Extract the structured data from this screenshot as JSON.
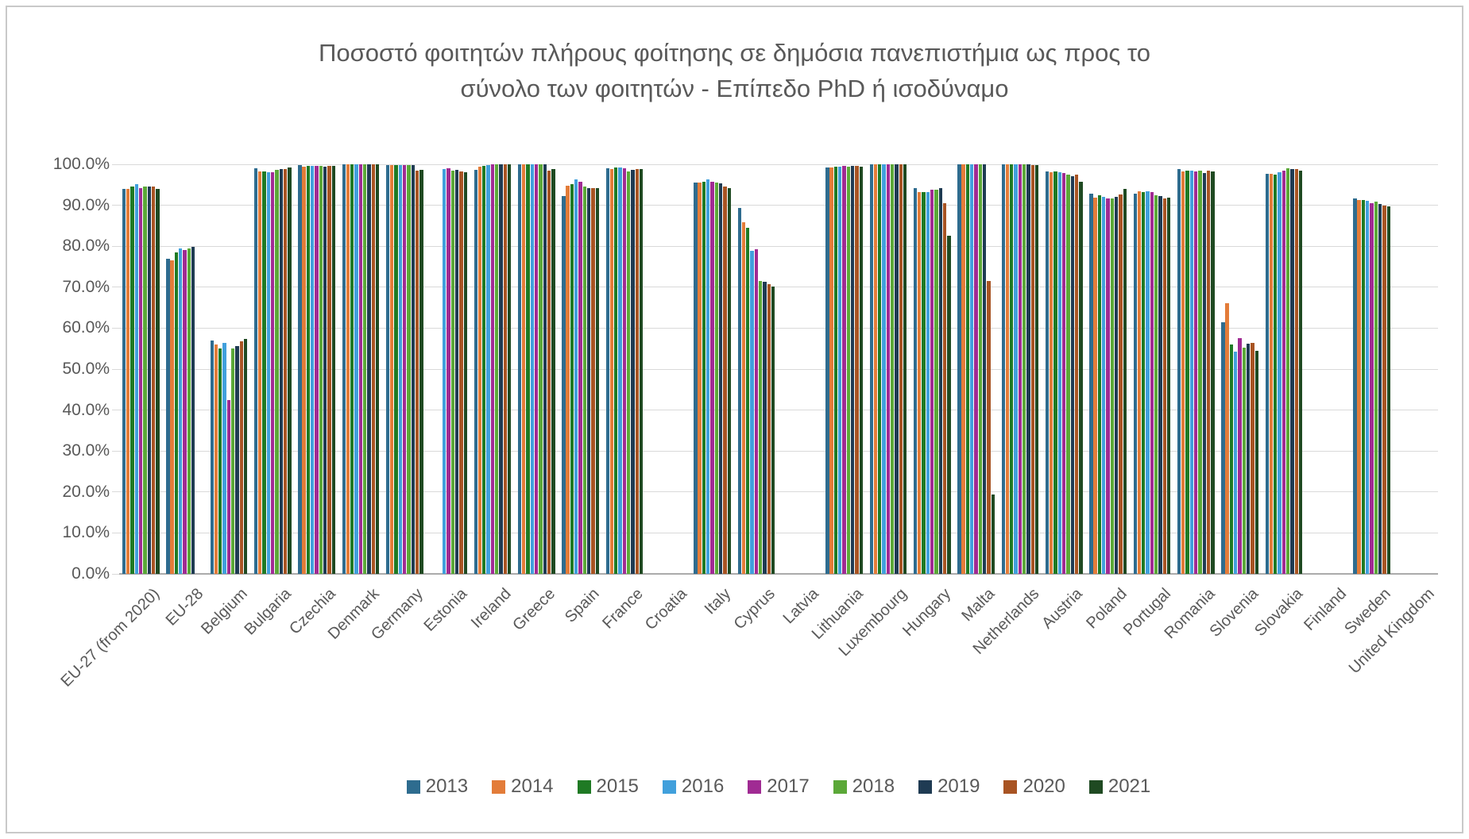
{
  "title": {
    "line1": "Ποσοστό φοιτητών πλήρους φοίτησης σε δημόσια πανεπιστήμια ως προς το",
    "line2": "σύνολο των φοιτητών - Επίπεδο PhD  ή ισοδύναμο"
  },
  "colors": {
    "text": "#595959",
    "gridline": "#d9d9d9",
    "axis_line": "#ababab",
    "background": "#ffffff",
    "frame_border": "#c9c9c9"
  },
  "chart_data": {
    "type": "bar",
    "title": "Ποσοστό φοιτητών πλήρους φοίτησης σε δημόσια πανεπιστήμια ως προς το σύνολο των φοιτητών - Επίπεδο PhD  ή ισοδύναμο",
    "xlabel": "",
    "ylabel": "",
    "grid": true,
    "legend_position": "bottom",
    "y_axis": {
      "min": 0,
      "max": 100,
      "step": 10,
      "unit": "%",
      "tick_labels": [
        "0.0%",
        "10.0%",
        "20.0%",
        "30.0%",
        "40.0%",
        "50.0%",
        "60.0%",
        "70.0%",
        "80.0%",
        "90.0%",
        "100.0%"
      ]
    },
    "categories": [
      "EU-27 (from 2020)",
      "EU-28",
      "Belgium",
      "Bulgaria",
      "Czechia",
      "Denmark",
      "Germany",
      "Estonia",
      "Ireland",
      "Greece",
      "Spain",
      "France",
      "Croatia",
      "Italy",
      "Cyprus",
      "Latvia",
      "Lithuania",
      "Luxembourg",
      "Hungary",
      "Malta",
      "Netherlands",
      "Austria",
      "Poland",
      "Portugal",
      "Romania",
      "Slovenia",
      "Slovakia",
      "Finland",
      "Sweden",
      "United Kingdom"
    ],
    "series": [
      {
        "name": "2013",
        "color": "#2e6c8f",
        "values": [
          94.0,
          77.0,
          57.0,
          99.1,
          99.9,
          100,
          99.9,
          null,
          98.6,
          100,
          92.2,
          99.1,
          null,
          95.5,
          89.4,
          null,
          99.2,
          100,
          94.2,
          100,
          100,
          98.3,
          92.9,
          92.9,
          98.9,
          61.5,
          97.7,
          null,
          91.7,
          null
        ]
      },
      {
        "name": "2014",
        "color": "#e37c39",
        "values": [
          94.0,
          76.6,
          56.0,
          98.3,
          99.4,
          100,
          99.8,
          null,
          99.4,
          100,
          94.8,
          98.9,
          null,
          95.5,
          85.9,
          null,
          99.3,
          100,
          93.3,
          100,
          100,
          98.0,
          91.9,
          93.4,
          98.2,
          66.0,
          97.7,
          null,
          91.2,
          null
        ]
      },
      {
        "name": "2015",
        "color": "#1f7a24",
        "values": [
          94.6,
          78.4,
          55.0,
          98.3,
          99.6,
          100,
          99.9,
          null,
          99.6,
          100,
          95.2,
          99.2,
          null,
          95.8,
          84.4,
          null,
          99.5,
          100,
          93.2,
          100,
          100,
          98.2,
          92.5,
          93.2,
          98.4,
          56.0,
          97.4,
          null,
          91.3,
          null
        ]
      },
      {
        "name": "2016",
        "color": "#41a0dc",
        "values": [
          95.2,
          79.5,
          56.4,
          98.0,
          99.7,
          100,
          99.9,
          98.8,
          99.9,
          100,
          96.4,
          99.2,
          null,
          96.3,
          78.8,
          null,
          99.4,
          100,
          93.2,
          100,
          100,
          98.0,
          92.1,
          93.4,
          98.5,
          54.2,
          98.1,
          null,
          91.0,
          null
        ]
      },
      {
        "name": "2017",
        "color": "#a02b93",
        "values": [
          94.1,
          79.0,
          42.4,
          98.1,
          99.7,
          100,
          99.9,
          99.1,
          100,
          100,
          95.8,
          99.1,
          null,
          95.7,
          79.2,
          null,
          99.6,
          100,
          93.8,
          100,
          100,
          97.8,
          91.6,
          93.2,
          98.2,
          57.6,
          98.5,
          null,
          90.5,
          null
        ]
      },
      {
        "name": "2018",
        "color": "#5ba838",
        "values": [
          94.5,
          79.5,
          55.0,
          98.6,
          99.7,
          100,
          99.9,
          98.4,
          100,
          100,
          94.6,
          98.3,
          null,
          95.5,
          71.6,
          null,
          99.5,
          100,
          93.8,
          100,
          100,
          97.4,
          91.6,
          92.4,
          98.4,
          55.2,
          99.0,
          null,
          90.9,
          null
        ]
      },
      {
        "name": "2019",
        "color": "#1f3b53",
        "values": [
          94.6,
          79.8,
          55.7,
          98.8,
          99.5,
          100,
          99.8,
          98.6,
          100,
          100,
          94.2,
          98.6,
          null,
          95.4,
          71.4,
          null,
          99.7,
          100,
          94.2,
          100,
          100,
          97.0,
          92.1,
          92.3,
          97.9,
          56.2,
          98.9,
          null,
          90.4,
          null
        ]
      },
      {
        "name": "2020",
        "color": "#a85423",
        "values": [
          94.5,
          null,
          56.7,
          98.8,
          99.6,
          100,
          98.4,
          98.3,
          100,
          98.5,
          94.2,
          98.9,
          null,
          94.6,
          70.7,
          null,
          99.6,
          100,
          90.6,
          71.5,
          99.9,
          97.4,
          92.7,
          91.6,
          98.5,
          56.3,
          98.9,
          null,
          90.0,
          null
        ]
      },
      {
        "name": "2021",
        "color": "#1f4a22",
        "values": [
          94.0,
          null,
          57.3,
          99.2,
          99.7,
          100,
          98.6,
          98.1,
          100,
          98.8,
          94.2,
          98.9,
          null,
          94.2,
          70.1,
          null,
          99.5,
          100,
          82.6,
          19.3,
          99.9,
          95.8,
          94.0,
          91.9,
          98.2,
          54.4,
          98.4,
          null,
          89.8,
          null
        ]
      }
    ]
  }
}
